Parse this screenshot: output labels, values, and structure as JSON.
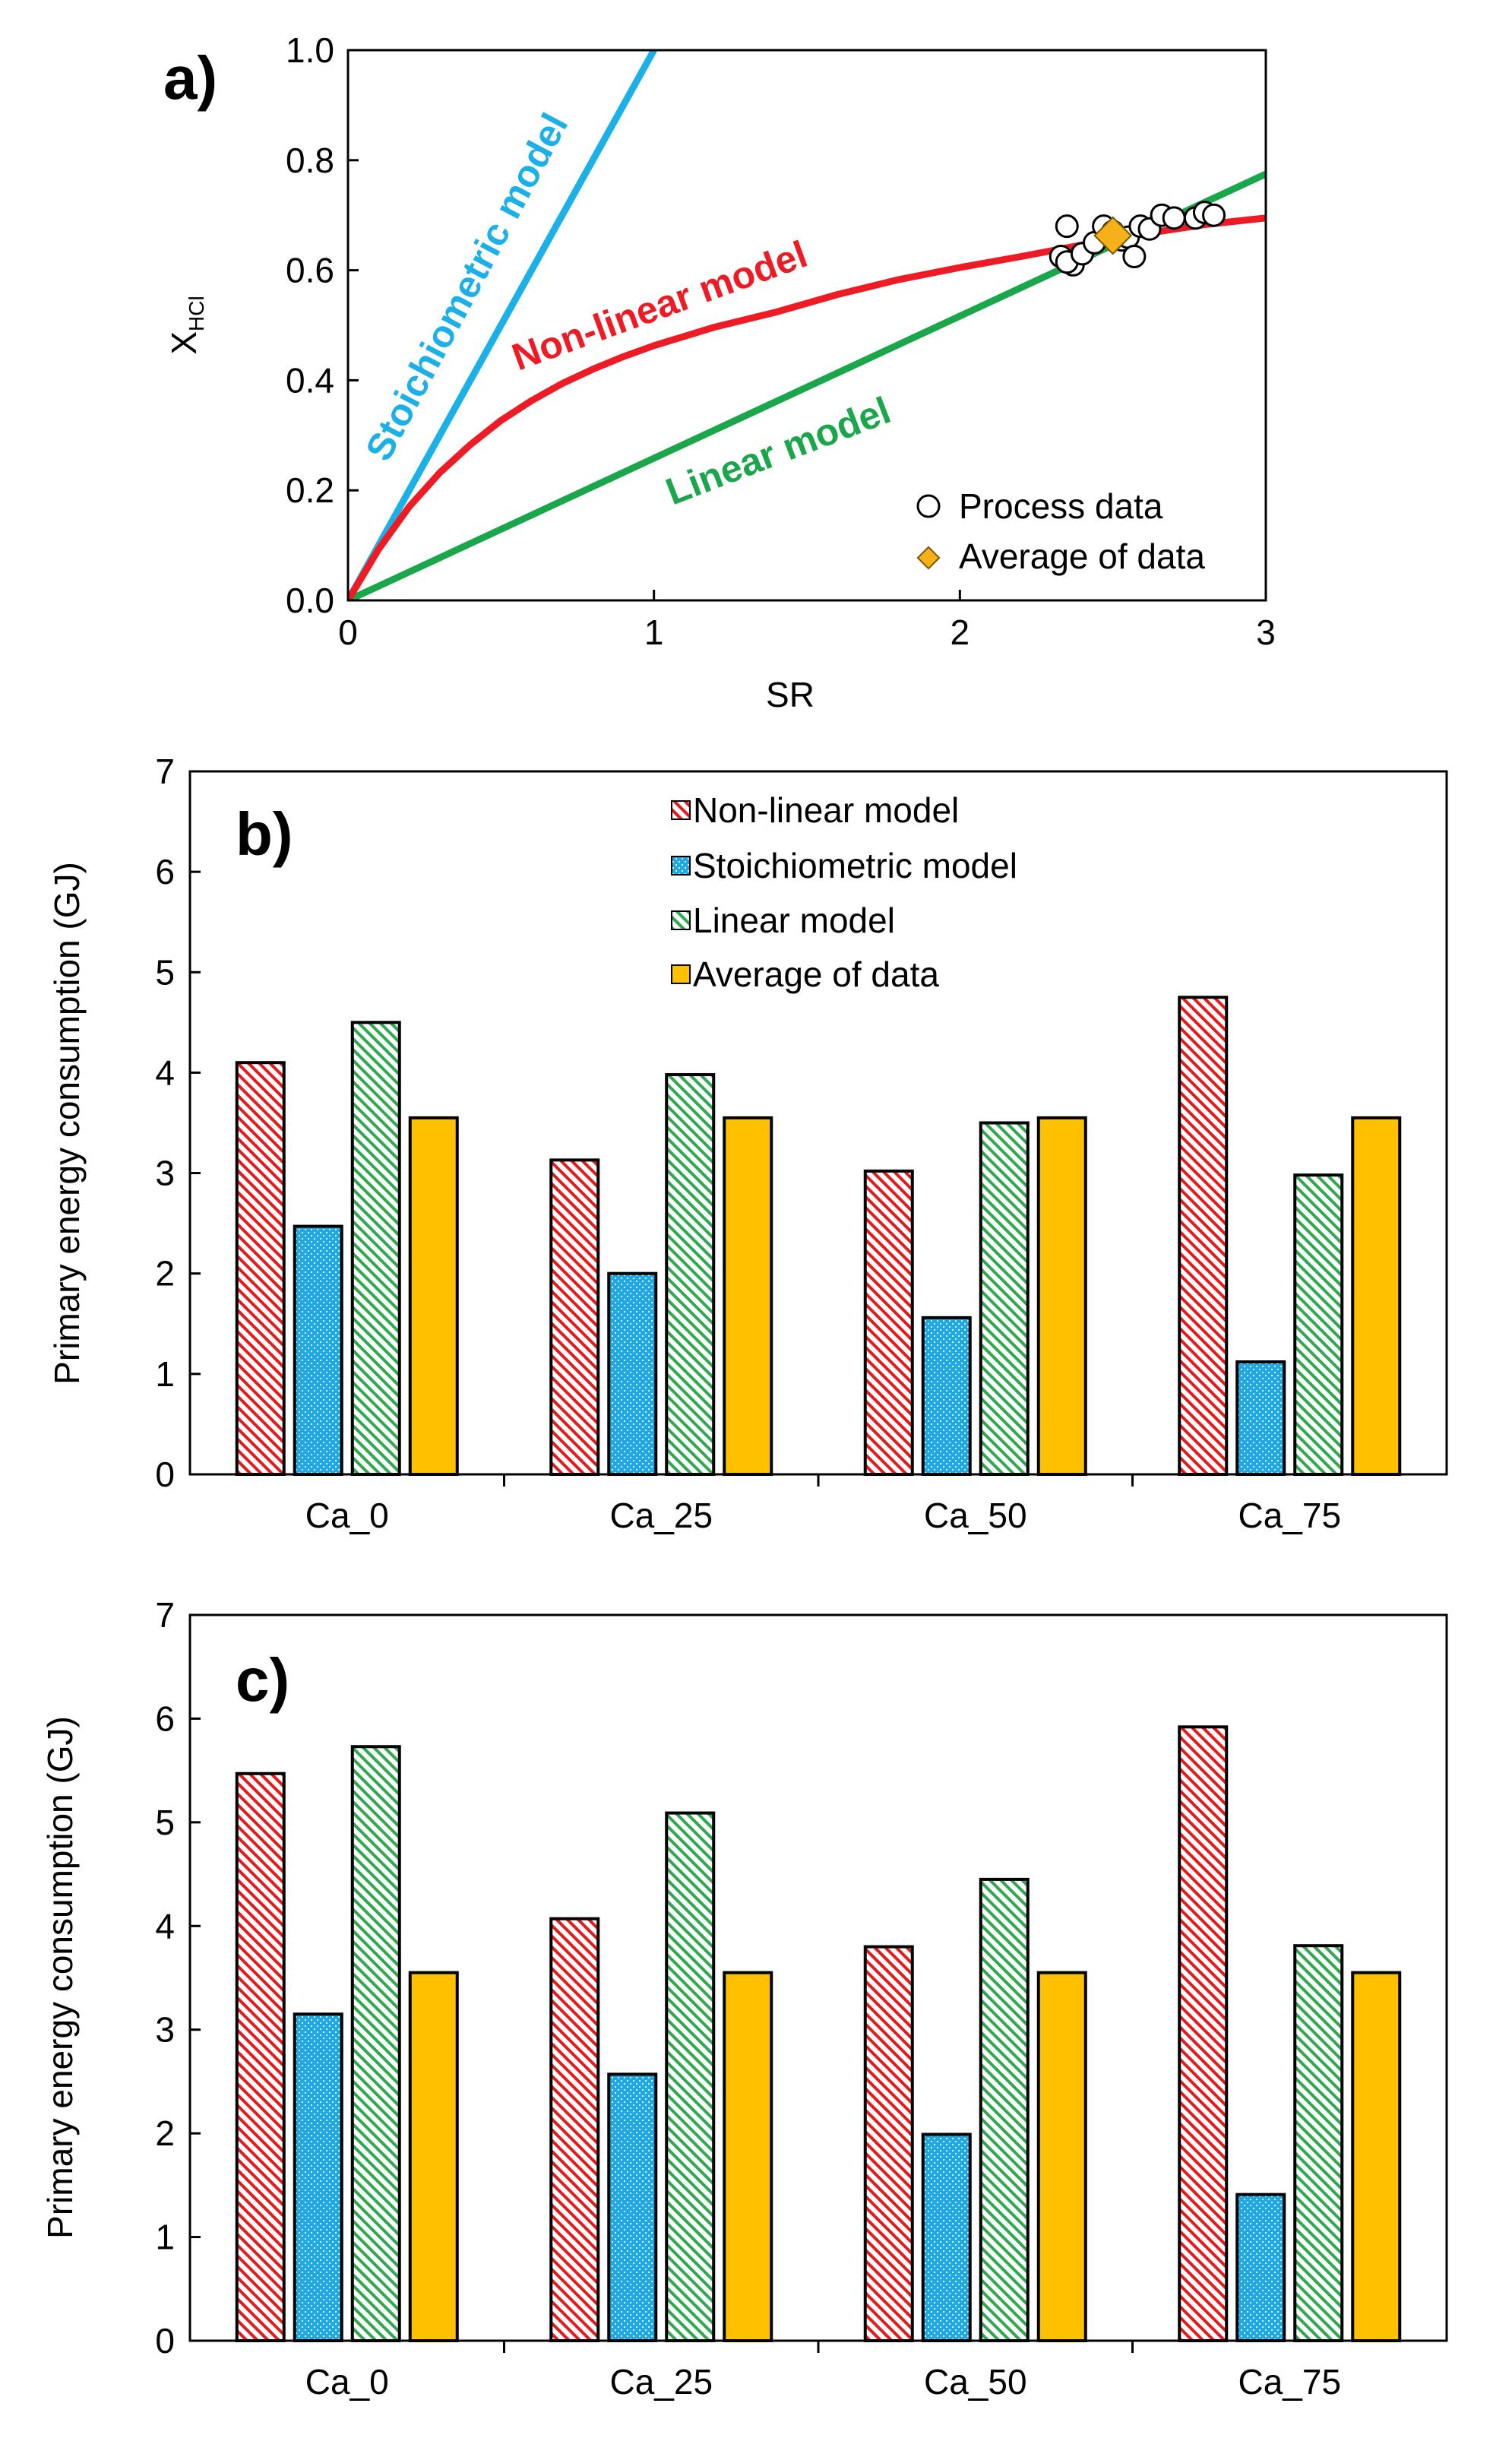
{
  "chart_data": [
    {
      "panel_label": "a)",
      "type": "line",
      "xlabel": "SR",
      "ylabel_main": "X",
      "ylabel_sub": "HCl",
      "xlim": [
        0,
        3
      ],
      "ylim": [
        0,
        1
      ],
      "x_ticks": [
        "0",
        "1",
        "2",
        "3"
      ],
      "y_ticks": [
        "0.0",
        "0.2",
        "0.4",
        "0.6",
        "0.8",
        "1.0"
      ],
      "series": [
        {
          "name": "Stoichiometric model",
          "color": "#1CB0E8",
          "x": [
            0,
            1.0
          ],
          "y": [
            0,
            1.0
          ]
        },
        {
          "name": "Linear model",
          "color": "#1AA64B",
          "x": [
            0,
            3.0
          ],
          "y": [
            0,
            0.775
          ]
        },
        {
          "name": "Non-linear model",
          "color": "#EE1B24",
          "x": [
            0,
            0.1,
            0.2,
            0.3,
            0.4,
            0.5,
            0.6,
            0.7,
            0.8,
            0.9,
            1.0,
            1.2,
            1.4,
            1.6,
            1.8,
            2.0,
            2.2,
            2.4,
            2.6,
            2.8,
            3.0
          ],
          "y": [
            0,
            0.093,
            0.17,
            0.232,
            0.283,
            0.327,
            0.363,
            0.394,
            0.42,
            0.443,
            0.463,
            0.497,
            0.524,
            0.556,
            0.583,
            0.605,
            0.625,
            0.646,
            0.666,
            0.683,
            0.695
          ]
        }
      ],
      "scatter": {
        "name": "Process data",
        "x": [
          2.33,
          2.35,
          2.37,
          2.35,
          2.4,
          2.44,
          2.47,
          2.5,
          2.53,
          2.55,
          2.57,
          2.59,
          2.62,
          2.66,
          2.7,
          2.77,
          2.8,
          2.83
        ],
        "y": [
          0.625,
          0.68,
          0.61,
          0.615,
          0.63,
          0.65,
          0.68,
          0.67,
          0.655,
          0.66,
          0.625,
          0.68,
          0.675,
          0.7,
          0.695,
          0.695,
          0.705,
          0.7
        ]
      },
      "average": {
        "name": "Average of data",
        "x": 2.5,
        "y": 0.663,
        "color": "#F5B01A"
      },
      "annotations": [
        "Stoichiometric model",
        "Non-linear model",
        "Linear model"
      ],
      "legend": {
        "position": "bottom-right",
        "entries": [
          "Process data",
          "Average of data"
        ]
      }
    },
    {
      "panel_label": "b)",
      "type": "bar",
      "ylabel": "Primary energy consumption (GJ)",
      "ylim": [
        0,
        7
      ],
      "y_ticks": [
        "0",
        "1",
        "2",
        "3",
        "4",
        "5",
        "6",
        "7"
      ],
      "categories": [
        "Ca_0",
        "Ca_25",
        "Ca_50",
        "Ca_75"
      ],
      "series": [
        {
          "name": "Non-linear model",
          "pattern": "red-hatch",
          "values": [
            4.1,
            3.13,
            3.02,
            4.75
          ]
        },
        {
          "name": "Stoichiometric model",
          "pattern": "blue-dots",
          "values": [
            2.47,
            2.0,
            1.56,
            1.12
          ]
        },
        {
          "name": "Linear model",
          "pattern": "green-hatch",
          "values": [
            4.5,
            3.98,
            3.5,
            2.98
          ]
        },
        {
          "name": "Average of data",
          "pattern": "yellow-solid",
          "values": [
            3.55,
            3.55,
            3.55,
            3.55
          ]
        }
      ],
      "legend": {
        "position": "top-center",
        "entries": [
          "Non-linear model",
          "Stoichiometric model",
          "Linear model",
          "Average of data"
        ]
      }
    },
    {
      "panel_label": "c)",
      "type": "bar",
      "ylabel": "Primary energy consumption (GJ)",
      "ylim": [
        0,
        7
      ],
      "y_ticks": [
        "0",
        "1",
        "2",
        "3",
        "4",
        "5",
        "6",
        "7"
      ],
      "categories": [
        "Ca_0",
        "Ca_25",
        "Ca_50",
        "Ca_75"
      ],
      "series": [
        {
          "name": "Non-linear model",
          "pattern": "red-hatch",
          "values": [
            5.47,
            4.07,
            3.8,
            5.92
          ]
        },
        {
          "name": "Stoichiometric model",
          "pattern": "blue-dots",
          "values": [
            3.15,
            2.57,
            1.99,
            1.41
          ]
        },
        {
          "name": "Linear model",
          "pattern": "green-hatch",
          "values": [
            5.73,
            5.09,
            4.45,
            3.81
          ]
        },
        {
          "name": "Average of data",
          "pattern": "yellow-solid",
          "values": [
            3.55,
            3.55,
            3.55,
            3.55
          ]
        }
      ]
    }
  ]
}
